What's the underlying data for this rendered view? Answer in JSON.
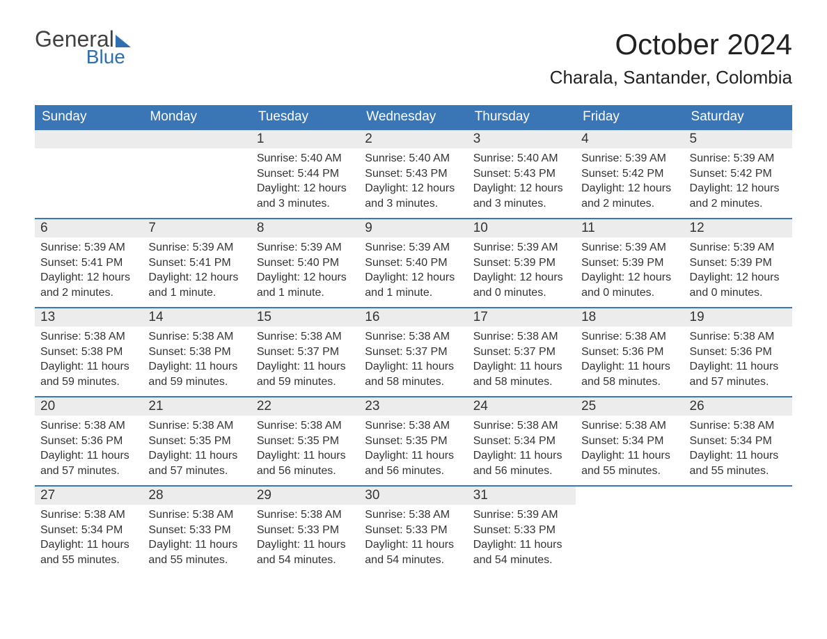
{
  "logo": {
    "general": "General",
    "blue": "Blue"
  },
  "title": "October 2024",
  "location": "Charala, Santander, Colombia",
  "colors": {
    "header_bg": "#3a76b6",
    "header_text": "#ffffff",
    "daynum_bg": "#ececec",
    "border": "#3a76b6",
    "body_text": "#333333",
    "page_bg": "#ffffff",
    "logo_blue": "#2f6fb0",
    "logo_gray": "#414141"
  },
  "typography": {
    "title_fontsize": 42,
    "location_fontsize": 26,
    "header_fontsize": 19,
    "daynum_fontsize": 19,
    "body_fontsize": 16
  },
  "weekdays": [
    "Sunday",
    "Monday",
    "Tuesday",
    "Wednesday",
    "Thursday",
    "Friday",
    "Saturday"
  ],
  "first_weekday_index": 2,
  "days": [
    {
      "n": 1,
      "sunrise": "5:40 AM",
      "sunset": "5:44 PM",
      "daylight": "12 hours and 3 minutes."
    },
    {
      "n": 2,
      "sunrise": "5:40 AM",
      "sunset": "5:43 PM",
      "daylight": "12 hours and 3 minutes."
    },
    {
      "n": 3,
      "sunrise": "5:40 AM",
      "sunset": "5:43 PM",
      "daylight": "12 hours and 3 minutes."
    },
    {
      "n": 4,
      "sunrise": "5:39 AM",
      "sunset": "5:42 PM",
      "daylight": "12 hours and 2 minutes."
    },
    {
      "n": 5,
      "sunrise": "5:39 AM",
      "sunset": "5:42 PM",
      "daylight": "12 hours and 2 minutes."
    },
    {
      "n": 6,
      "sunrise": "5:39 AM",
      "sunset": "5:41 PM",
      "daylight": "12 hours and 2 minutes."
    },
    {
      "n": 7,
      "sunrise": "5:39 AM",
      "sunset": "5:41 PM",
      "daylight": "12 hours and 1 minute."
    },
    {
      "n": 8,
      "sunrise": "5:39 AM",
      "sunset": "5:40 PM",
      "daylight": "12 hours and 1 minute."
    },
    {
      "n": 9,
      "sunrise": "5:39 AM",
      "sunset": "5:40 PM",
      "daylight": "12 hours and 1 minute."
    },
    {
      "n": 10,
      "sunrise": "5:39 AM",
      "sunset": "5:39 PM",
      "daylight": "12 hours and 0 minutes."
    },
    {
      "n": 11,
      "sunrise": "5:39 AM",
      "sunset": "5:39 PM",
      "daylight": "12 hours and 0 minutes."
    },
    {
      "n": 12,
      "sunrise": "5:39 AM",
      "sunset": "5:39 PM",
      "daylight": "12 hours and 0 minutes."
    },
    {
      "n": 13,
      "sunrise": "5:38 AM",
      "sunset": "5:38 PM",
      "daylight": "11 hours and 59 minutes."
    },
    {
      "n": 14,
      "sunrise": "5:38 AM",
      "sunset": "5:38 PM",
      "daylight": "11 hours and 59 minutes."
    },
    {
      "n": 15,
      "sunrise": "5:38 AM",
      "sunset": "5:37 PM",
      "daylight": "11 hours and 59 minutes."
    },
    {
      "n": 16,
      "sunrise": "5:38 AM",
      "sunset": "5:37 PM",
      "daylight": "11 hours and 58 minutes."
    },
    {
      "n": 17,
      "sunrise": "5:38 AM",
      "sunset": "5:37 PM",
      "daylight": "11 hours and 58 minutes."
    },
    {
      "n": 18,
      "sunrise": "5:38 AM",
      "sunset": "5:36 PM",
      "daylight": "11 hours and 58 minutes."
    },
    {
      "n": 19,
      "sunrise": "5:38 AM",
      "sunset": "5:36 PM",
      "daylight": "11 hours and 57 minutes."
    },
    {
      "n": 20,
      "sunrise": "5:38 AM",
      "sunset": "5:36 PM",
      "daylight": "11 hours and 57 minutes."
    },
    {
      "n": 21,
      "sunrise": "5:38 AM",
      "sunset": "5:35 PM",
      "daylight": "11 hours and 57 minutes."
    },
    {
      "n": 22,
      "sunrise": "5:38 AM",
      "sunset": "5:35 PM",
      "daylight": "11 hours and 56 minutes."
    },
    {
      "n": 23,
      "sunrise": "5:38 AM",
      "sunset": "5:35 PM",
      "daylight": "11 hours and 56 minutes."
    },
    {
      "n": 24,
      "sunrise": "5:38 AM",
      "sunset": "5:34 PM",
      "daylight": "11 hours and 56 minutes."
    },
    {
      "n": 25,
      "sunrise": "5:38 AM",
      "sunset": "5:34 PM",
      "daylight": "11 hours and 55 minutes."
    },
    {
      "n": 26,
      "sunrise": "5:38 AM",
      "sunset": "5:34 PM",
      "daylight": "11 hours and 55 minutes."
    },
    {
      "n": 27,
      "sunrise": "5:38 AM",
      "sunset": "5:34 PM",
      "daylight": "11 hours and 55 minutes."
    },
    {
      "n": 28,
      "sunrise": "5:38 AM",
      "sunset": "5:33 PM",
      "daylight": "11 hours and 55 minutes."
    },
    {
      "n": 29,
      "sunrise": "5:38 AM",
      "sunset": "5:33 PM",
      "daylight": "11 hours and 54 minutes."
    },
    {
      "n": 30,
      "sunrise": "5:38 AM",
      "sunset": "5:33 PM",
      "daylight": "11 hours and 54 minutes."
    },
    {
      "n": 31,
      "sunrise": "5:39 AM",
      "sunset": "5:33 PM",
      "daylight": "11 hours and 54 minutes."
    }
  ],
  "labels": {
    "sunrise": "Sunrise:",
    "sunset": "Sunset:",
    "daylight": "Daylight:"
  }
}
